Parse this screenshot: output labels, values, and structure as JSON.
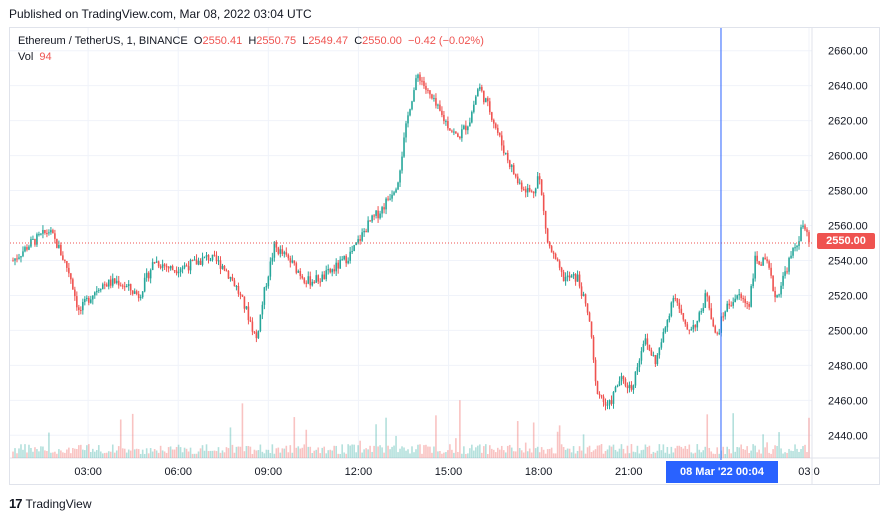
{
  "header": {
    "published": "Published on TradingView.com, Mar 08, 2022 03:04 UTC"
  },
  "legend": {
    "symbol": "Ethereum / TetherUS, 1, BINANCE",
    "open_label": "O",
    "open": "2550.41",
    "high_label": "H",
    "high": "2550.75",
    "low_label": "L",
    "low": "2549.47",
    "close_label": "C",
    "close": "2550.00",
    "change": "−0.42 (−0.02%)",
    "vol_label": "Vol",
    "vol": "94"
  },
  "crosshair": {
    "date_label": "08 Mar '22   00:04"
  },
  "last_price": {
    "label": "2550.00"
  },
  "footer": {
    "brand": "TradingView"
  },
  "colors": {
    "up": "#26a69a",
    "down": "#ef5350",
    "crosshair": "#2962ff",
    "grid": "#f0f3fa"
  },
  "chart_data": {
    "type": "candlestick",
    "title": "Ethereum / TetherUS, 1, BINANCE",
    "interval": "1 minute",
    "y_ticks": [
      2440,
      2460,
      2480,
      2500,
      2520,
      2540,
      2560,
      2580,
      2600,
      2620,
      2640,
      2660
    ],
    "y_tick_labels": [
      "2440.00",
      "2460.00",
      "2480.00",
      "2500.00",
      "2520.00",
      "2540.00",
      "2560.00",
      "2580.00",
      "2600.00",
      "2620.00",
      "2640.00",
      "2660.00"
    ],
    "ylim": [
      2427,
      2673
    ],
    "x_tick_labels": [
      "03:00",
      "06:00",
      "09:00",
      "12:00",
      "15:00",
      "18:00",
      "21:00",
      "00:04",
      "03:0"
    ],
    "xlim_hours": [
      0.4,
      27.1
    ],
    "last_price": 2550.0,
    "price_path": [
      [
        0.5,
        2540
      ],
      [
        1.1,
        2550
      ],
      [
        1.7,
        2557
      ],
      [
        2.0,
        2548
      ],
      [
        2.4,
        2532
      ],
      [
        2.7,
        2510
      ],
      [
        3.0,
        2518
      ],
      [
        3.4,
        2526
      ],
      [
        4.0,
        2528
      ],
      [
        4.7,
        2520
      ],
      [
        5.2,
        2540
      ],
      [
        5.8,
        2535
      ],
      [
        6.5,
        2538
      ],
      [
        7.0,
        2542
      ],
      [
        7.5,
        2537
      ],
      [
        7.9,
        2526
      ],
      [
        8.3,
        2510
      ],
      [
        8.6,
        2495
      ],
      [
        8.9,
        2525
      ],
      [
        9.2,
        2548
      ],
      [
        9.7,
        2540
      ],
      [
        10.3,
        2528
      ],
      [
        10.8,
        2530
      ],
      [
        11.4,
        2538
      ],
      [
        11.8,
        2545
      ],
      [
        12.3,
        2560
      ],
      [
        12.8,
        2570
      ],
      [
        13.3,
        2585
      ],
      [
        13.7,
        2628
      ],
      [
        14.0,
        2647
      ],
      [
        14.3,
        2636
      ],
      [
        14.8,
        2622
      ],
      [
        15.3,
        2610
      ],
      [
        15.7,
        2620
      ],
      [
        16.0,
        2640
      ],
      [
        16.4,
        2625
      ],
      [
        16.8,
        2605
      ],
      [
        17.3,
        2585
      ],
      [
        17.8,
        2578
      ],
      [
        18.0,
        2590
      ],
      [
        18.3,
        2550
      ],
      [
        18.8,
        2530
      ],
      [
        19.3,
        2530
      ],
      [
        19.7,
        2505
      ],
      [
        19.9,
        2468
      ],
      [
        20.3,
        2455
      ],
      [
        20.7,
        2472
      ],
      [
        21.1,
        2467
      ],
      [
        21.5,
        2495
      ],
      [
        21.9,
        2482
      ],
      [
        22.2,
        2500
      ],
      [
        22.5,
        2522
      ],
      [
        22.9,
        2500
      ],
      [
        23.3,
        2505
      ],
      [
        23.6,
        2522
      ],
      [
        23.9,
        2495
      ],
      [
        24.2,
        2512
      ],
      [
        24.6,
        2520
      ],
      [
        25.0,
        2515
      ],
      [
        25.2,
        2540
      ],
      [
        25.6,
        2538
      ],
      [
        25.9,
        2518
      ],
      [
        26.3,
        2538
      ],
      [
        26.6,
        2550
      ],
      [
        26.8,
        2560
      ],
      [
        27.0,
        2550
      ]
    ]
  }
}
